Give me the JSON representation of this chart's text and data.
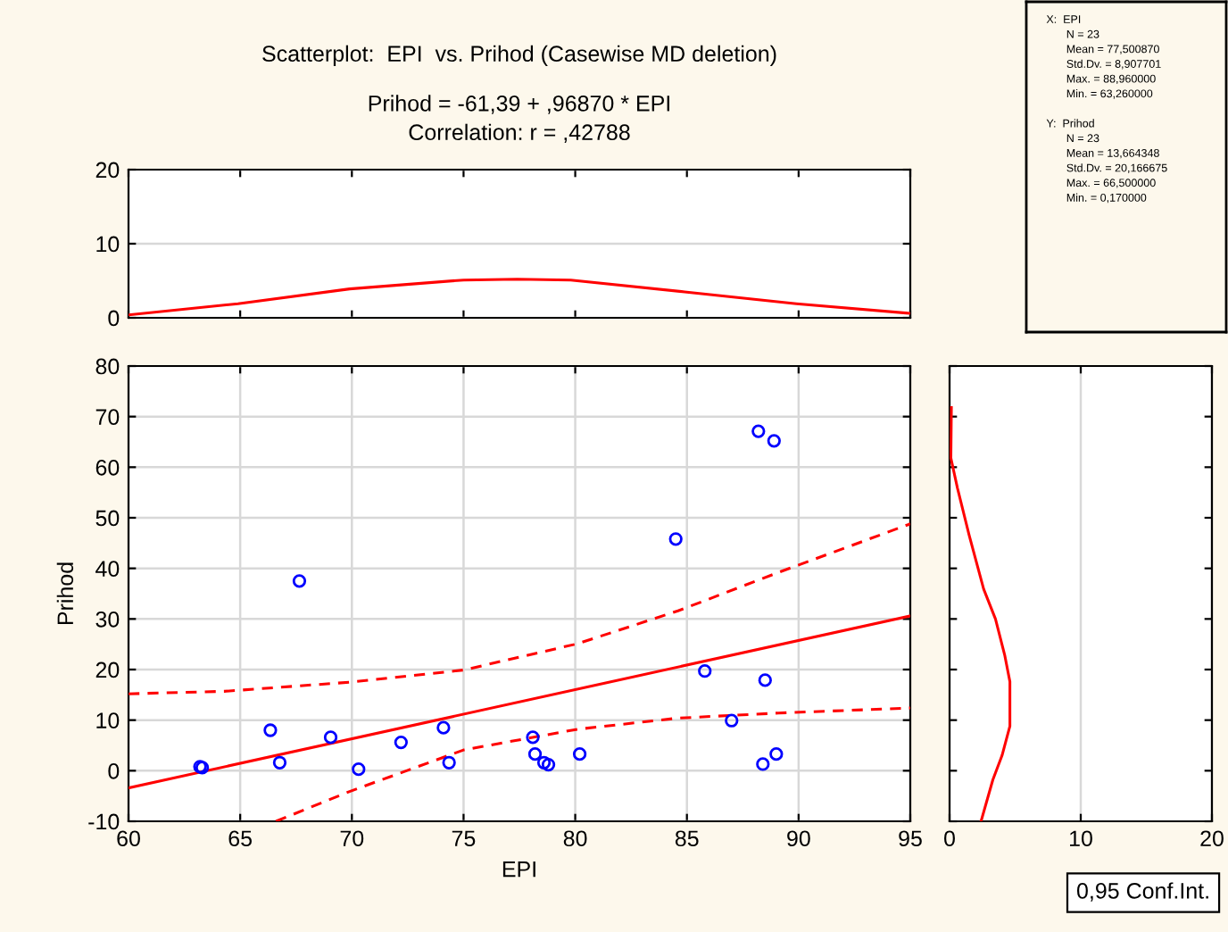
{
  "chart_data": [
    {
      "type": "line",
      "title": "Scatterplot:  EPI  vs. Prihod (Casewise MD deletion)",
      "subtitle": "Prihod = -61,39 + ,96870 * EPI\nCorrelation: r = ,42788",
      "xlim": [
        60,
        95
      ],
      "xticks": [
        {
          "value": 60,
          "label": null
        },
        {
          "value": 65,
          "label": null
        },
        {
          "value": 70,
          "label": null
        },
        {
          "value": 75,
          "label": null
        },
        {
          "value": 80,
          "label": null
        },
        {
          "value": 85,
          "label": null
        },
        {
          "value": 90,
          "label": null
        },
        {
          "value": 95,
          "label": null
        }
      ],
      "ylim": [
        0,
        20
      ],
      "yticks": [
        0,
        10,
        20
      ],
      "tick_labels": "y",
      "grid": "y",
      "series": [
        {
          "color": "#ff0000",
          "x": [
            60,
            64.9,
            69.9,
            75,
            77.4,
            79.8,
            84.9,
            89.9,
            95
          ],
          "values": [
            0.4,
            1.9,
            3.9,
            5.1,
            5.2,
            5.1,
            3.5,
            1.9,
            0.6
          ]
        }
      ]
    },
    {
      "type": "other",
      "annotations": [
        "X:  EPI",
        "N = 23",
        "Mean = 77,500870",
        "Std.Dv. = 8,907701",
        "Max. = 88,960000",
        "Min. = 63,260000",
        "Y:  Prihod",
        "N = 23",
        "Mean = 13,664348",
        "Std.Dv. = 20,166675",
        "Max. = 66,500000",
        "Min. = 0,170000"
      ]
    },
    {
      "type": "scatter",
      "xlabel": "EPI",
      "ylabel": "Prihod",
      "xlim": [
        60,
        95
      ],
      "xticks": [
        60,
        65,
        70,
        75,
        80,
        85,
        90,
        95
      ],
      "ylim": [
        -10,
        80
      ],
      "yticks": [
        -10,
        0,
        10,
        20,
        30,
        40,
        50,
        60,
        70,
        80
      ],
      "grid": true,
      "annotations": [
        "0,95 Conf.Int."
      ],
      "series": [
        {
          "type": "scatter",
          "color": "#0000ff",
          "marker": "circle",
          "x": [
            63.2,
            63.3,
            66.35,
            66.77,
            67.65,
            69.05,
            70.3,
            72.2,
            74.1,
            74.35,
            78.1,
            78.2,
            78.6,
            78.8,
            80.2,
            84.5,
            85.8,
            87.0,
            88.2,
            88.9,
            88.5,
            88.4,
            89.0
          ],
          "values": [
            0.8,
            0.6,
            8.0,
            1.6,
            37.5,
            6.6,
            0.3,
            5.6,
            8.5,
            1.6,
            6.6,
            3.3,
            1.6,
            1.2,
            3.3,
            45.8,
            19.7,
            9.9,
            67.1,
            65.2,
            17.9,
            1.3,
            3.3
          ]
        },
        {
          "type": "line",
          "color": "#ff0000",
          "line_style": "solid",
          "x": [
            60,
            95
          ],
          "values": [
            -3.4,
            30.6
          ]
        },
        {
          "type": "line",
          "color": "#ff0000",
          "line_style": "dashed",
          "x": [
            60,
            64.3,
            69.9,
            75,
            80.1,
            84.6,
            89.1,
            95
          ],
          "values": [
            15.2,
            15.7,
            17.5,
            19.9,
            25.1,
            31.6,
            39.2,
            48.8
          ]
        },
        {
          "type": "line",
          "color": "#ff0000",
          "line_style": "dashed",
          "x": [
            66.6,
            69.9,
            75,
            80.1,
            84.6,
            89.1,
            95
          ],
          "values": [
            -10,
            -4.1,
            4.1,
            8.2,
            10.4,
            11.4,
            12.4
          ]
        }
      ]
    },
    {
      "type": "line",
      "xlim": [
        0,
        20
      ],
      "xticks": [
        0,
        10,
        20
      ],
      "ylim": [
        -10,
        80
      ],
      "yticks": [
        {
          "value": -10,
          "label": null
        },
        {
          "value": 0,
          "label": null
        },
        {
          "value": 10,
          "label": null
        },
        {
          "value": 20,
          "label": null
        },
        {
          "value": 30,
          "label": null
        },
        {
          "value": 40,
          "label": null
        },
        {
          "value": 50,
          "label": null
        },
        {
          "value": 60,
          "label": null
        },
        {
          "value": 70,
          "label": null
        },
        {
          "value": 80,
          "label": null
        }
      ],
      "tick_labels": "x",
      "grid": "x",
      "series": [
        {
          "color": "#ff0000",
          "x": [
            0.14,
            0.1,
            0.6,
            1.5,
            2.6,
            3.5,
            4.2,
            4.6,
            4.6,
            4.0,
            3.3,
            2.4
          ],
          "values": [
            71.8,
            61.8,
            55.9,
            46.5,
            35.9,
            30.0,
            22.9,
            17.6,
            8.8,
            3.0,
            -1.8,
            -10
          ]
        }
      ]
    }
  ]
}
